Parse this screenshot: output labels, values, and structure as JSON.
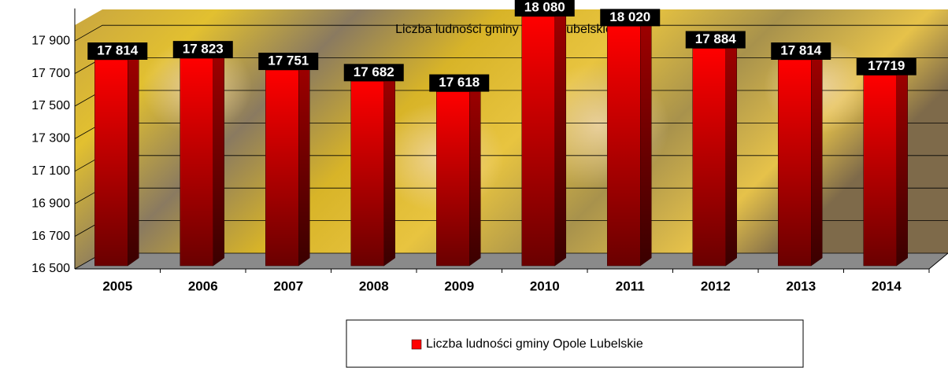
{
  "chart_data": {
    "type": "bar",
    "title": "Liczba ludności gminy Opole Lubelskie",
    "categories": [
      "2005",
      "2006",
      "2007",
      "2008",
      "2009",
      "2010",
      "2011",
      "2012",
      "2013",
      "2014"
    ],
    "series": [
      {
        "name": "Liczba ludności gminy Opole Lubelskie",
        "color": "#ff0000",
        "values": [
          17814,
          17823,
          17751,
          17682,
          17618,
          18080,
          18020,
          17884,
          17814,
          17719
        ],
        "value_labels": [
          "17 814",
          "17 823",
          "17 751",
          "17 682",
          "17 618",
          "18 080",
          "18 020",
          "17 884",
          "17 814",
          "17719"
        ]
      }
    ],
    "ylim": [
      16500,
      18100
    ],
    "yticks": [
      {
        "value": 16500,
        "label": "16 500"
      },
      {
        "value": 16700,
        "label": "16 700"
      },
      {
        "value": 16900,
        "label": "16 900"
      },
      {
        "value": 17100,
        "label": "17 100"
      },
      {
        "value": 17300,
        "label": "17 300"
      },
      {
        "value": 17500,
        "label": "17 500"
      },
      {
        "value": 17700,
        "label": "17 700"
      },
      {
        "value": 17900,
        "label": "17 900"
      }
    ],
    "grid": true,
    "legend": "bottom"
  }
}
